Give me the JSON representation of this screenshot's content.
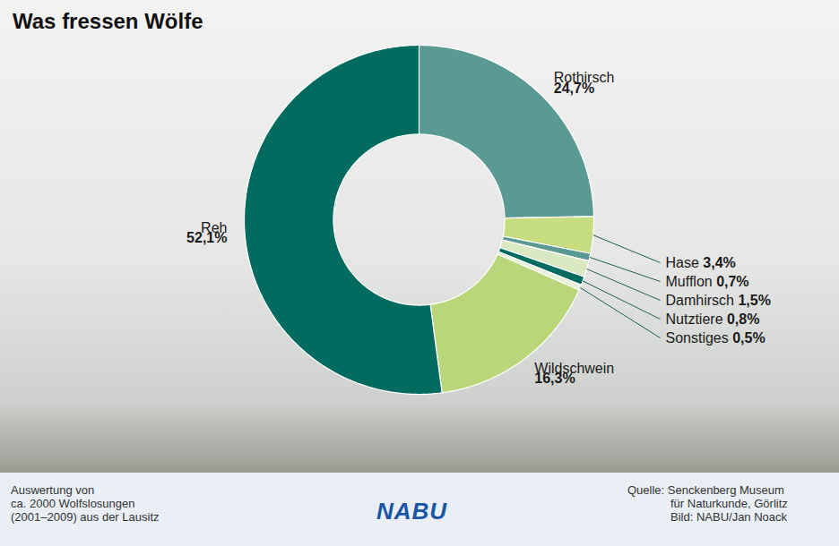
{
  "chart_data": {
    "type": "donut",
    "title": "Was fressen Wölfe",
    "categories": [
      "Rothirsch",
      "Hase",
      "Mufflon",
      "Damhirsch",
      "Nutztiere",
      "Sonstiges",
      "Wildschwein",
      "Reh"
    ],
    "values": [
      24.7,
      3.4,
      0.7,
      1.5,
      0.8,
      0.5,
      16.3,
      52.1
    ],
    "value_labels": [
      "24,7%",
      "3,4%",
      "0,7%",
      "1,5%",
      "0,8%",
      "0,5%",
      "16,3%",
      "52,1%"
    ],
    "colors": [
      "#5b9a94",
      "#c6dd80",
      "#5b9a94",
      "#dbe9c2",
      "#006b5e",
      "#e8f0d8",
      "#b9d77a",
      "#006b5e"
    ],
    "data_labels": true,
    "legend": false,
    "caption": [
      "Auswertung von",
      "ca. 2000 Wolfslosungen",
      "(2001–2009) aus der Lausitz"
    ],
    "logo": "NABU",
    "source": [
      "Quelle: Senckenberg Museum",
      "für Naturkunde, Görlitz",
      "Bild: NABU/Jan Noack"
    ]
  }
}
